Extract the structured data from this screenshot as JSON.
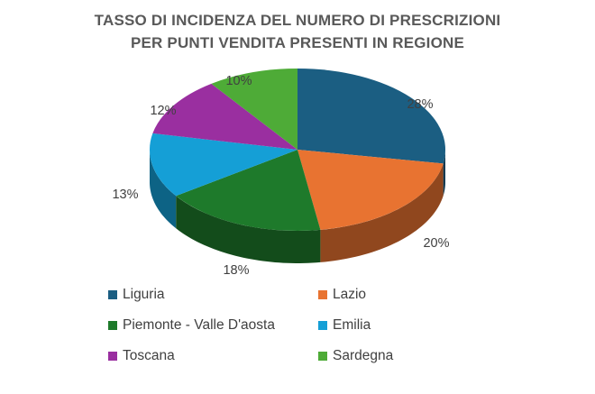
{
  "chart_data": {
    "type": "pie",
    "title": [
      "TASSO DI INCIDENZA DEL NUMERO DI PRESCRIZIONI",
      "PER PUNTI VENDITA PRESENTI IN REGIONE"
    ],
    "categories": [
      "Liguria",
      "Lazio",
      "Piemonte - Valle D'aosta",
      "Emilia",
      "Toscana",
      "Sardegna"
    ],
    "values": [
      28,
      20,
      18,
      13,
      12,
      10
    ],
    "data_labels": [
      "28%",
      "20%",
      "18%",
      "13%",
      "12%",
      "10%"
    ],
    "colors": [
      "#1b5e82",
      "#e87331",
      "#1e7a2b",
      "#159fd6",
      "#9a2fa0",
      "#4eab37"
    ],
    "style": "3d",
    "legend_position": "bottom"
  }
}
